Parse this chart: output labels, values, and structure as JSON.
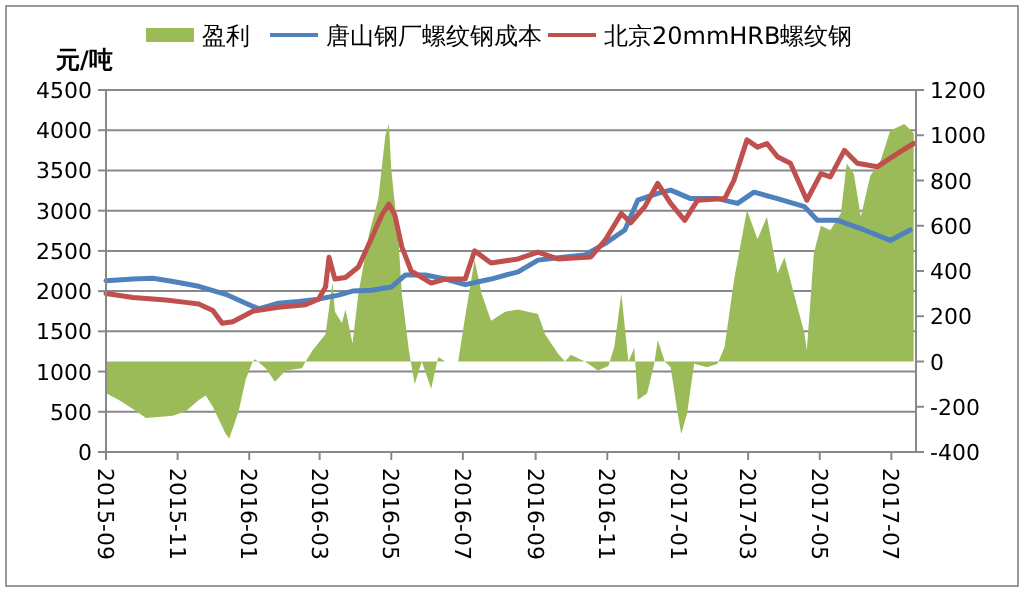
{
  "chart_data": {
    "type": "line",
    "ylabel": "元/吨",
    "legend": "top",
    "grid": "y",
    "line_style": "solid",
    "marker": "none",
    "xlim": [
      "2015-09-01",
      "2017-07-22"
    ],
    "xticks": [
      "2015-09",
      "2015-11",
      "2016-01",
      "2016-03",
      "2016-05",
      "2016-07",
      "2016-09",
      "2016-11",
      "2017-01",
      "2017-03",
      "2017-05",
      "2017-07"
    ],
    "ylim": [
      0,
      4500
    ],
    "yticks": [
      0,
      500,
      1000,
      1500,
      2000,
      2500,
      3000,
      3500,
      4000,
      4500
    ],
    "y2lim": [
      -400,
      1200
    ],
    "y2ticks": [
      -400,
      -200,
      0,
      200,
      400,
      600,
      800,
      1000,
      1200
    ],
    "series": [
      {
        "name": "盈利",
        "type": "area",
        "axis": "y2",
        "color": "#9bbb59",
        "x": [
          "2015-09-01",
          "2015-09-12",
          "2015-09-24",
          "2015-10-05",
          "2015-10-28",
          "2015-11-08",
          "2015-11-19",
          "2015-11-25",
          "2015-12-01",
          "2015-12-12",
          "2015-12-15",
          "2015-12-23",
          "2015-12-29",
          "2016-01-04",
          "2016-01-06",
          "2016-01-15",
          "2016-01-23",
          "2016-02-01",
          "2016-02-15",
          "2016-02-18",
          "2016-02-24",
          "2016-03-06",
          "2016-03-12",
          "2016-03-14",
          "2016-03-20",
          "2016-03-23",
          "2016-03-29",
          "2016-04-03",
          "2016-04-12",
          "2016-04-20",
          "2016-04-26",
          "2016-04-29",
          "2016-05-01",
          "2016-05-07",
          "2016-05-10",
          "2016-05-16",
          "2016-05-21",
          "2016-05-27",
          "2016-06-04",
          "2016-06-10",
          "2016-06-16",
          "2016-06-27",
          "2016-07-03",
          "2016-07-11",
          "2016-07-17",
          "2016-07-25",
          "2016-08-06",
          "2016-08-17",
          "2016-09-03",
          "2016-09-09",
          "2016-09-20",
          "2016-09-26",
          "2016-10-01",
          "2016-10-13",
          "2016-10-24",
          "2016-11-02",
          "2016-11-07",
          "2016-11-13",
          "2016-11-16",
          "2016-11-19",
          "2016-11-24",
          "2016-11-27",
          "2016-12-05",
          "2016-12-11",
          "2016-12-14",
          "2016-12-20",
          "2016-12-25",
          "2016-12-31",
          "2017-01-03",
          "2017-01-08",
          "2017-01-14",
          "2017-01-25",
          "2017-02-03",
          "2017-02-09",
          "2017-02-17",
          "2017-02-28",
          "2017-03-09",
          "2017-03-17",
          "2017-03-26",
          "2017-04-01",
          "2017-04-09",
          "2017-04-18",
          "2017-04-20",
          "2017-04-26",
          "2017-05-02",
          "2017-05-10",
          "2017-05-19",
          "2017-05-24",
          "2017-05-30",
          "2017-06-05",
          "2017-06-13",
          "2017-06-22",
          "2017-06-30",
          "2017-07-12",
          "2017-07-20"
        ],
        "values": [
          -140,
          -170,
          -210,
          -250,
          -240,
          -220,
          -170,
          -150,
          -200,
          -320,
          -340,
          -220,
          -80,
          0,
          10,
          -30,
          -90,
          -40,
          -30,
          0,
          50,
          120,
          350,
          220,
          170,
          230,
          80,
          300,
          560,
          720,
          1000,
          1050,
          850,
          550,
          300,
          50,
          -100,
          0,
          -120,
          20,
          0,
          0,
          200,
          450,
          300,
          180,
          220,
          230,
          210,
          120,
          35,
          0,
          30,
          0,
          -40,
          -20,
          65,
          300,
          150,
          0,
          60,
          -170,
          -140,
          -10,
          95,
          0,
          -25,
          -230,
          -320,
          -230,
          -10,
          -25,
          -10,
          65,
          360,
          670,
          540,
          640,
          390,
          460,
          300,
          125,
          50,
          480,
          600,
          580,
          655,
          875,
          830,
          640,
          820,
          890,
          1020,
          1050,
          1010
        ]
      },
      {
        "name": "唐山钢厂螺纹钢成本",
        "color": "#4f81bd",
        "x": [
          "2015-09-01",
          "2015-09-24",
          "2015-10-11",
          "2015-10-28",
          "2015-11-19",
          "2015-12-12",
          "2015-12-29",
          "2016-01-09",
          "2016-01-26",
          "2016-02-12",
          "2016-02-29",
          "2016-03-17",
          "2016-03-29",
          "2016-04-14",
          "2016-05-01",
          "2016-05-13",
          "2016-05-30",
          "2016-06-16",
          "2016-07-03",
          "2016-07-25",
          "2016-08-17",
          "2016-09-03",
          "2016-09-26",
          "2016-10-13",
          "2016-10-30",
          "2016-11-16",
          "2016-11-27",
          "2016-12-14",
          "2016-12-25",
          "2017-01-11",
          "2017-02-03",
          "2017-02-20",
          "2017-03-06",
          "2017-03-26",
          "2017-04-18",
          "2017-04-29",
          "2017-05-16",
          "2017-06-08",
          "2017-06-30",
          "2017-07-17"
        ],
        "values": [
          2130,
          2150,
          2160,
          2120,
          2060,
          1960,
          1850,
          1780,
          1850,
          1870,
          1900,
          1950,
          2000,
          2010,
          2050,
          2200,
          2200,
          2150,
          2080,
          2150,
          2240,
          2385,
          2425,
          2450,
          2590,
          2760,
          3130,
          3215,
          3255,
          3150,
          3150,
          3090,
          3230,
          3150,
          3050,
          2880,
          2880,
          2760,
          2630,
          2760
        ]
      },
      {
        "name": "北京20mmHRB螺纹钢",
        "color": "#c0504d",
        "x": [
          "2015-09-01",
          "2015-09-24",
          "2015-10-22",
          "2015-11-08",
          "2015-11-19",
          "2015-12-01",
          "2015-12-09",
          "2015-12-18",
          "2016-01-04",
          "2016-01-26",
          "2016-02-18",
          "2016-02-29",
          "2016-03-06",
          "2016-03-09",
          "2016-03-14",
          "2016-03-23",
          "2016-04-03",
          "2016-04-14",
          "2016-04-23",
          "2016-04-29",
          "2016-05-04",
          "2016-05-10",
          "2016-05-18",
          "2016-06-04",
          "2016-06-16",
          "2016-07-03",
          "2016-07-11",
          "2016-07-25",
          "2016-08-17",
          "2016-09-03",
          "2016-09-20",
          "2016-10-18",
          "2016-10-30",
          "2016-11-13",
          "2016-11-21",
          "2016-12-03",
          "2016-12-14",
          "2016-12-25",
          "2017-01-06",
          "2017-01-17",
          "2017-02-09",
          "2017-02-17",
          "2017-02-28",
          "2017-03-09",
          "2017-03-17",
          "2017-03-26",
          "2017-04-06",
          "2017-04-20",
          "2017-05-02",
          "2017-05-10",
          "2017-05-22",
          "2017-06-02",
          "2017-06-19",
          "2017-07-06",
          "2017-07-20"
        ],
        "values": [
          1970,
          1920,
          1890,
          1860,
          1840,
          1760,
          1600,
          1620,
          1750,
          1800,
          1830,
          1900,
          2050,
          2420,
          2150,
          2170,
          2300,
          2650,
          2950,
          3080,
          2950,
          2550,
          2250,
          2100,
          2150,
          2150,
          2500,
          2350,
          2400,
          2485,
          2400,
          2425,
          2630,
          2965,
          2850,
          3050,
          3340,
          3090,
          2880,
          3130,
          3150,
          3380,
          3880,
          3790,
          3835,
          3670,
          3590,
          3130,
          3460,
          3420,
          3750,
          3590,
          3545,
          3710,
          3835
        ]
      }
    ]
  }
}
